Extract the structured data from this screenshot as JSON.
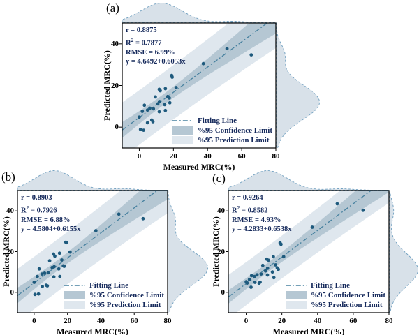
{
  "colors": {
    "point": "#1e5a7d",
    "fit_line": "#47819f",
    "confidence_band": "#b5c7d3",
    "prediction_band": "#dfe7ee",
    "density_fill": "#d8e1e9",
    "density_stroke": "#71a0c0",
    "stats_text": "#15295b",
    "axis_text": "#000000"
  },
  "chart_data": {
    "type": "scatter",
    "xlabel": "Measured MRC(%)",
    "ylabel": "Predicted MRC(%)",
    "xlim": [
      -10,
      80
    ],
    "ylim": [
      -10,
      50
    ],
    "xticks": [
      0,
      20,
      40,
      60,
      80
    ],
    "yticks": [
      0,
      20,
      40
    ],
    "grid": false,
    "legend_position": "lower right",
    "legend": [
      "Fitting Line",
      "%95 Confidence Limit",
      "%95 Prediction Limit"
    ],
    "panels": [
      {
        "label": "(a)",
        "stats": {
          "r": "r = 0.8875",
          "r2_base": "R",
          "r2_sup": "2",
          "r2_rest": " = 0.7877",
          "rmse": "RMSE = 6.99%",
          "equation": "y = 4.6492+0.6053x"
        },
        "fit": {
          "intercept": 4.6492,
          "slope": 0.6053
        },
        "confidence_band": {
          "h0": 2.6,
          "xbar": 14,
          "flare": 0.0135
        },
        "prediction_band": {
          "h0": 13,
          "xbar": 14,
          "flare": 0.0135
        },
        "x_density": [
          {
            "mu": 13,
            "sig": 12,
            "amp": 1
          },
          {
            "mu": 55,
            "sig": 7,
            "amp": 0.07
          }
        ],
        "y_density": [
          {
            "mu": 12,
            "sig": 8.5,
            "amp": 1
          },
          {
            "mu": 35,
            "sig": 5,
            "amp": 0.18
          }
        ],
        "points": [
          [
            0,
            4.8
          ],
          [
            0.7,
            -1.1
          ],
          [
            1.8,
            7.6
          ],
          [
            2.5,
            -1.5
          ],
          [
            3,
            10.5
          ],
          [
            4.8,
            8.2
          ],
          [
            4.8,
            2.1
          ],
          [
            6.2,
            9.1
          ],
          [
            7.3,
            3.4
          ],
          [
            8,
            2.6
          ],
          [
            8.3,
            8.8
          ],
          [
            9.4,
            14.5
          ],
          [
            10.9,
            11.2
          ],
          [
            11.7,
            18.2
          ],
          [
            11.7,
            7.4
          ],
          [
            11.8,
            12.3
          ],
          [
            12.3,
            17.5
          ],
          [
            14.9,
            10.8
          ],
          [
            15.3,
            18.5
          ],
          [
            15.3,
            8
          ],
          [
            16.7,
            14.7
          ],
          [
            17.6,
            14
          ],
          [
            17.9,
            11.7
          ],
          [
            19,
            24.8
          ],
          [
            19.3,
            24
          ],
          [
            21.6,
            19
          ],
          [
            37.5,
            30.5
          ],
          [
            51.4,
            37.7
          ],
          [
            65.6,
            34.7
          ]
        ]
      },
      {
        "label": "(b)",
        "stats": {
          "r": "r = 0.8903",
          "r2_base": "R",
          "r2_sup": "2",
          "r2_rest": " = 0.7926",
          "rmse": "RMSE = 6.88%",
          "equation": "y = 4.5804+0.6155x"
        },
        "fit": {
          "intercept": 4.5804,
          "slope": 0.6155
        },
        "confidence_band": {
          "h0": 2.6,
          "xbar": 14,
          "flare": 0.0135
        },
        "prediction_band": {
          "h0": 12.8,
          "xbar": 14,
          "flare": 0.0135
        },
        "x_density": [
          {
            "mu": 12,
            "sig": 11.5,
            "amp": 1
          },
          {
            "mu": 53,
            "sig": 7,
            "amp": 0.08
          }
        ],
        "y_density": [
          {
            "mu": 12,
            "sig": 8.5,
            "amp": 1
          },
          {
            "mu": 36,
            "sig": 5,
            "amp": 0.17
          }
        ],
        "points": [
          [
            0,
            4.9
          ],
          [
            0.5,
            -1
          ],
          [
            1.9,
            7.8
          ],
          [
            2.6,
            -0.8
          ],
          [
            3,
            11.5
          ],
          [
            4.7,
            9
          ],
          [
            4.9,
            2.9
          ],
          [
            6.3,
            9.4
          ],
          [
            7.2,
            3.5
          ],
          [
            7.9,
            3.2
          ],
          [
            8.4,
            9.6
          ],
          [
            9.3,
            15.5
          ],
          [
            10.8,
            12.2
          ],
          [
            11.6,
            18.8
          ],
          [
            11.8,
            7.6
          ],
          [
            12,
            12.6
          ],
          [
            12.4,
            17.8
          ],
          [
            14.8,
            11.5
          ],
          [
            15.2,
            19.2
          ],
          [
            15.4,
            7.8
          ],
          [
            16.6,
            15.9
          ],
          [
            17.5,
            13
          ],
          [
            18,
            12.8
          ],
          [
            19,
            24.6
          ],
          [
            19.4,
            24.4
          ],
          [
            21.5,
            19.8
          ],
          [
            37,
            30.3
          ],
          [
            50.8,
            38.4
          ],
          [
            65.3,
            36.2
          ]
        ]
      },
      {
        "label": "(c)",
        "stats": {
          "r": "r = 0.9264",
          "r2_base": "R",
          "r2_sup": "2",
          "r2_rest": " = 0.8582",
          "rmse": "RMSE = 4.93%",
          "equation": "y = 4.2833+0.6538x"
        },
        "fit": {
          "intercept": 4.2833,
          "slope": 0.6538
        },
        "confidence_band": {
          "h0": 2.3,
          "xbar": 13,
          "flare": 0.011
        },
        "prediction_band": {
          "h0": 10.5,
          "xbar": 13,
          "flare": 0.011
        },
        "x_density": [
          {
            "mu": 12,
            "sig": 11,
            "amp": 1
          },
          {
            "mu": 53,
            "sig": 7,
            "amp": 0.07
          }
        ],
        "y_density": [
          {
            "mu": 11,
            "sig": 8,
            "amp": 1
          },
          {
            "mu": 40,
            "sig": 5,
            "amp": 0.15
          }
        ],
        "points": [
          [
            0,
            5.2
          ],
          [
            0.5,
            4.5
          ],
          [
            1.8,
            6.3
          ],
          [
            2.7,
            2.5
          ],
          [
            3,
            8.2
          ],
          [
            4.6,
            7.8
          ],
          [
            4.9,
            4.9
          ],
          [
            6.1,
            8.6
          ],
          [
            7.2,
            4.5
          ],
          [
            7.8,
            5
          ],
          [
            8.4,
            9
          ],
          [
            9.3,
            13.2
          ],
          [
            10.8,
            10.5
          ],
          [
            11.5,
            16.3
          ],
          [
            11.9,
            8.5
          ],
          [
            12,
            11.8
          ],
          [
            12.5,
            15.8
          ],
          [
            14.7,
            10
          ],
          [
            15.2,
            17.5
          ],
          [
            15.5,
            7.2
          ],
          [
            16.5,
            13.5
          ],
          [
            17.4,
            12
          ],
          [
            18,
            11.3
          ],
          [
            19,
            24.3
          ],
          [
            19.5,
            23.6
          ],
          [
            21,
            17.5
          ],
          [
            37,
            32
          ],
          [
            51,
            43.5
          ],
          [
            65.5,
            40.3
          ]
        ]
      }
    ]
  }
}
